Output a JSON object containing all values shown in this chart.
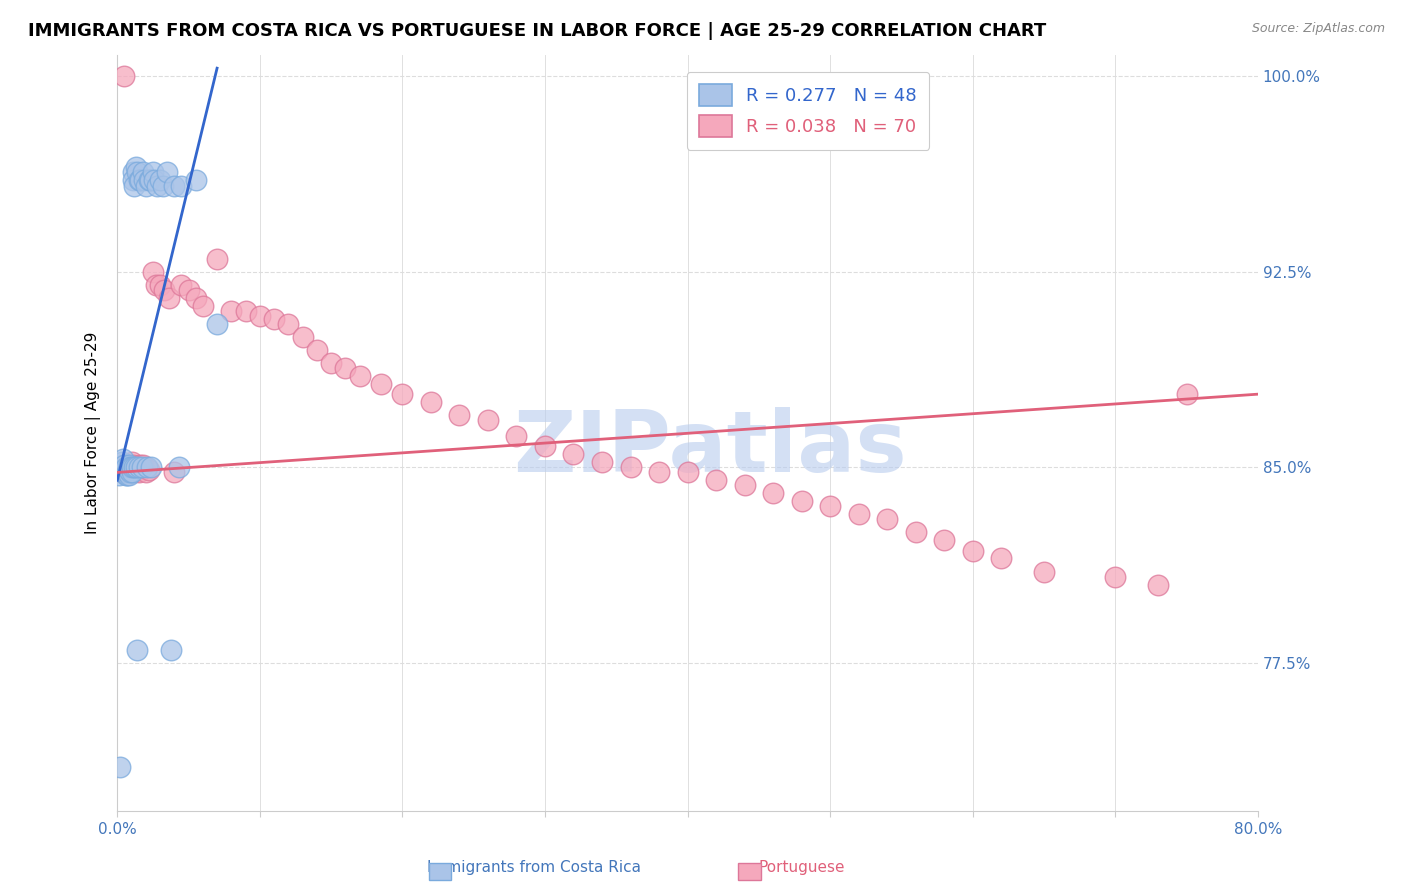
{
  "title": "IMMIGRANTS FROM COSTA RICA VS PORTUGUESE IN LABOR FORCE | AGE 25-29 CORRELATION CHART",
  "source": "Source: ZipAtlas.com",
  "ylabel": "In Labor Force | Age 25-29",
  "xmin": 0.0,
  "xmax": 0.8,
  "ymin": 0.718,
  "ymax": 1.008,
  "yticks": [
    0.775,
    0.85,
    0.925,
    1.0
  ],
  "ytick_labels": [
    "77.5%",
    "85.0%",
    "92.5%",
    "100.0%"
  ],
  "xticks": [
    0.0,
    0.1,
    0.2,
    0.3,
    0.4,
    0.5,
    0.6,
    0.7,
    0.8
  ],
  "blue_R": 0.277,
  "blue_N": 48,
  "pink_R": 0.038,
  "pink_N": 70,
  "blue_color": "#aac4e8",
  "blue_line_color": "#3366cc",
  "pink_color": "#f5a8bc",
  "pink_line_color": "#e0607a",
  "blue_edge_color": "#7aaadd",
  "pink_edge_color": "#dd7799",
  "axis_color": "#4477bb",
  "watermark": "ZIPatlas",
  "watermark_color": "#b8ccee",
  "title_fontsize": 13,
  "axis_label_fontsize": 11,
  "tick_fontsize": 11,
  "blue_scatter_x": [
    0.001,
    0.002,
    0.003,
    0.004,
    0.005,
    0.005,
    0.006,
    0.006,
    0.007,
    0.007,
    0.008,
    0.008,
    0.008,
    0.009,
    0.009,
    0.01,
    0.01,
    0.011,
    0.011,
    0.012,
    0.012,
    0.013,
    0.013,
    0.014,
    0.014,
    0.015,
    0.015,
    0.016,
    0.017,
    0.018,
    0.019,
    0.02,
    0.021,
    0.022,
    0.023,
    0.024,
    0.025,
    0.026,
    0.028,
    0.03,
    0.032,
    0.035,
    0.038,
    0.04,
    0.043,
    0.045,
    0.055,
    0.07
  ],
  "blue_scatter_y": [
    0.847,
    0.735,
    0.852,
    0.853,
    0.849,
    0.851,
    0.847,
    0.85,
    0.847,
    0.848,
    0.847,
    0.849,
    0.851,
    0.848,
    0.85,
    0.848,
    0.85,
    0.963,
    0.96,
    0.958,
    0.85,
    0.965,
    0.85,
    0.963,
    0.78,
    0.96,
    0.85,
    0.96,
    0.85,
    0.963,
    0.96,
    0.958,
    0.85,
    0.96,
    0.96,
    0.85,
    0.963,
    0.96,
    0.958,
    0.96,
    0.958,
    0.963,
    0.78,
    0.958,
    0.85,
    0.958,
    0.96,
    0.905
  ],
  "pink_scatter_x": [
    0.003,
    0.004,
    0.005,
    0.005,
    0.006,
    0.007,
    0.008,
    0.009,
    0.009,
    0.01,
    0.01,
    0.011,
    0.011,
    0.012,
    0.013,
    0.014,
    0.015,
    0.016,
    0.017,
    0.018,
    0.02,
    0.022,
    0.025,
    0.027,
    0.03,
    0.033,
    0.036,
    0.04,
    0.045,
    0.05,
    0.055,
    0.06,
    0.07,
    0.08,
    0.09,
    0.1,
    0.11,
    0.12,
    0.13,
    0.14,
    0.15,
    0.16,
    0.17,
    0.185,
    0.2,
    0.22,
    0.24,
    0.26,
    0.28,
    0.3,
    0.32,
    0.34,
    0.36,
    0.38,
    0.4,
    0.42,
    0.44,
    0.46,
    0.48,
    0.5,
    0.52,
    0.54,
    0.56,
    0.58,
    0.6,
    0.62,
    0.65,
    0.7,
    0.73,
    0.75
  ],
  "pink_scatter_y": [
    0.848,
    0.85,
    0.848,
    1.0,
    0.848,
    0.85,
    0.848,
    0.85,
    0.848,
    0.849,
    0.852,
    0.848,
    0.851,
    0.848,
    0.85,
    0.849,
    0.848,
    0.851,
    0.85,
    0.851,
    0.848,
    0.849,
    0.925,
    0.92,
    0.92,
    0.918,
    0.915,
    0.848,
    0.92,
    0.918,
    0.915,
    0.912,
    0.93,
    0.91,
    0.91,
    0.908,
    0.907,
    0.905,
    0.9,
    0.895,
    0.89,
    0.888,
    0.885,
    0.882,
    0.878,
    0.875,
    0.87,
    0.868,
    0.862,
    0.858,
    0.855,
    0.852,
    0.85,
    0.848,
    0.848,
    0.845,
    0.843,
    0.84,
    0.837,
    0.835,
    0.832,
    0.83,
    0.825,
    0.822,
    0.818,
    0.815,
    0.81,
    0.808,
    0.805,
    0.878
  ],
  "blue_trend_x": [
    0.0,
    0.07
  ],
  "blue_trend_y": [
    0.845,
    1.003
  ],
  "pink_trend_x": [
    0.0,
    0.8
  ],
  "pink_trend_y": [
    0.848,
    0.878
  ]
}
